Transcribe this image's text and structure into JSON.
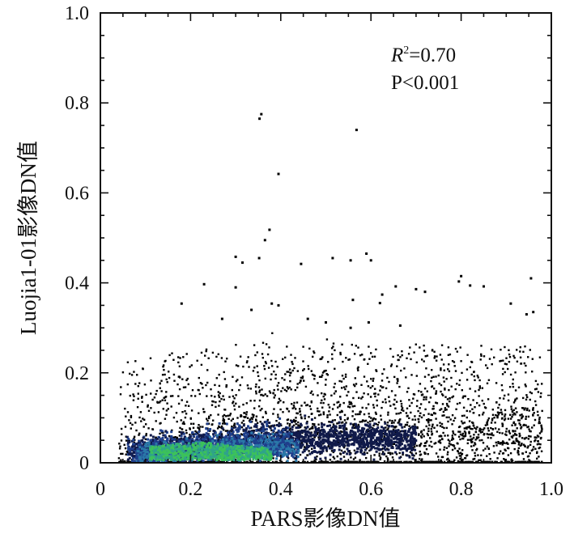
{
  "chart_data": {
    "type": "scatter",
    "title": "",
    "xlabel": "PARS影像DN值",
    "ylabel": "Luojia1-01影像DN值",
    "xlim": [
      0,
      1.0
    ],
    "ylim": [
      0,
      1.0
    ],
    "x_ticks": [
      "0",
      "0.2",
      "0.4",
      "0.6",
      "0.8",
      "1.0"
    ],
    "y_ticks": [
      "0",
      "0.2",
      "0.4",
      "0.6",
      "0.8",
      "1.0"
    ],
    "x_tick_values": [
      0,
      0.2,
      0.4,
      0.6,
      0.8,
      1.0
    ],
    "y_tick_values": [
      0,
      0.2,
      0.4,
      0.6,
      0.8,
      1.0
    ],
    "grid": false,
    "density_colors": [
      "#000000",
      "#101a4a",
      "#1f3f8c",
      "#2a78a8",
      "#2fa38a",
      "#3cc25a"
    ],
    "annotation": {
      "r2_symbol": "R",
      "r2_sup": "2",
      "r2_value": "=0.70",
      "p_text": "P<0.001"
    },
    "outliers": [
      {
        "x": 0.357,
        "y": 0.775
      },
      {
        "x": 0.353,
        "y": 0.765
      },
      {
        "x": 0.568,
        "y": 0.74
      },
      {
        "x": 0.395,
        "y": 0.642
      },
      {
        "x": 0.375,
        "y": 0.518
      },
      {
        "x": 0.365,
        "y": 0.495
      },
      {
        "x": 0.3,
        "y": 0.458
      },
      {
        "x": 0.352,
        "y": 0.455
      },
      {
        "x": 0.515,
        "y": 0.455
      },
      {
        "x": 0.555,
        "y": 0.45
      },
      {
        "x": 0.59,
        "y": 0.465
      },
      {
        "x": 0.6,
        "y": 0.45
      },
      {
        "x": 0.315,
        "y": 0.445
      },
      {
        "x": 0.445,
        "y": 0.442
      },
      {
        "x": 0.8,
        "y": 0.415
      },
      {
        "x": 0.955,
        "y": 0.41
      },
      {
        "x": 0.23,
        "y": 0.397
      },
      {
        "x": 0.655,
        "y": 0.392
      },
      {
        "x": 0.7,
        "y": 0.386
      },
      {
        "x": 0.82,
        "y": 0.394
      },
      {
        "x": 0.3,
        "y": 0.39
      },
      {
        "x": 0.85,
        "y": 0.392
      },
      {
        "x": 0.795,
        "y": 0.403
      },
      {
        "x": 0.18,
        "y": 0.354
      },
      {
        "x": 0.38,
        "y": 0.354
      },
      {
        "x": 0.625,
        "y": 0.374
      },
      {
        "x": 0.56,
        "y": 0.362
      },
      {
        "x": 0.91,
        "y": 0.354
      },
      {
        "x": 0.62,
        "y": 0.355
      },
      {
        "x": 0.335,
        "y": 0.34
      },
      {
        "x": 0.395,
        "y": 0.35
      },
      {
        "x": 0.72,
        "y": 0.38
      },
      {
        "x": 0.96,
        "y": 0.335
      },
      {
        "x": 0.945,
        "y": 0.33
      },
      {
        "x": 0.27,
        "y": 0.32
      },
      {
        "x": 0.46,
        "y": 0.32
      },
      {
        "x": 0.5,
        "y": 0.312
      },
      {
        "x": 0.665,
        "y": 0.305
      },
      {
        "x": 0.595,
        "y": 0.312
      },
      {
        "x": 0.555,
        "y": 0.3
      }
    ]
  }
}
